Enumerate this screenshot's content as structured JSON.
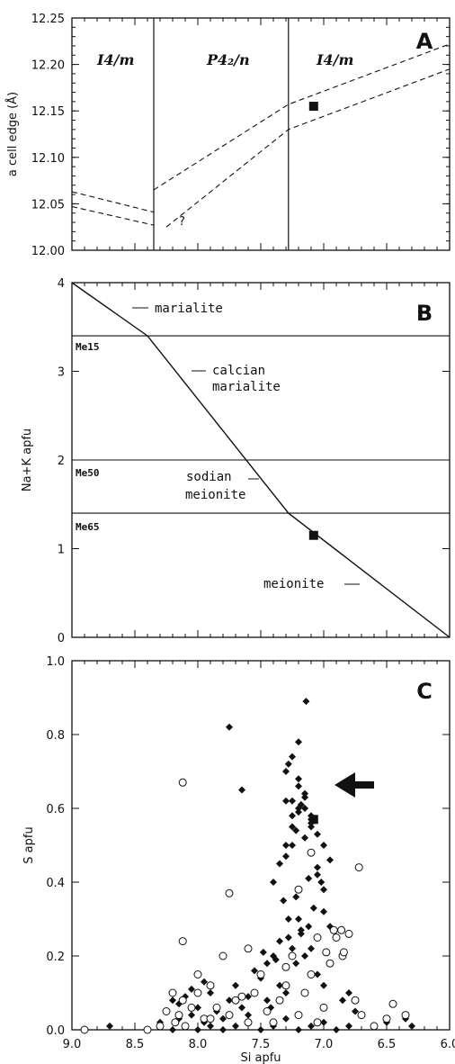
{
  "chart_data": [
    {
      "panel": "A",
      "type": "line",
      "ylabel": "a cell edge (Å)",
      "xlim": [
        9.0,
        6.0
      ],
      "ylim": [
        12.0,
        12.25
      ],
      "yticks": [
        "12.00",
        "12.05",
        "12.10",
        "12.15",
        "12.20",
        "12.25"
      ],
      "grid": false,
      "vertical_lines_x": [
        8.35,
        7.28
      ],
      "region_labels": [
        "I4/m",
        "P4₂/n",
        "I4/m"
      ],
      "question_mark": "?",
      "series": [
        {
          "style": "dashed",
          "x": [
            9.0,
            8.35
          ],
          "y": [
            12.063,
            12.041
          ]
        },
        {
          "style": "dashed",
          "x": [
            9.0,
            8.35
          ],
          "y": [
            12.047,
            12.027
          ]
        },
        {
          "style": "dashed",
          "x": [
            8.35,
            7.28,
            6.0
          ],
          "y": [
            12.065,
            12.157,
            12.222
          ]
        },
        {
          "style": "dashed",
          "x": [
            8.25,
            7.28,
            6.0
          ],
          "y": [
            12.025,
            12.13,
            12.195
          ]
        }
      ],
      "highlight_point": {
        "x": 7.08,
        "y": 12.155
      }
    },
    {
      "panel": "B",
      "type": "line",
      "ylabel": "Na+K apfu",
      "xlim": [
        9.0,
        6.0
      ],
      "ylim": [
        0,
        4
      ],
      "yticks": [
        "0",
        "1",
        "2",
        "3",
        "4"
      ],
      "horizontal_lines_y": [
        3.4,
        2.0,
        1.4
      ],
      "composition_labels": [
        "Me15",
        "Me50",
        "Me65"
      ],
      "field_labels": [
        "marialite",
        "calcian",
        "marialite",
        "sodian",
        "meionite",
        "meionite"
      ],
      "series": [
        {
          "style": "solid",
          "x": [
            9.0,
            8.4,
            7.28,
            6.0
          ],
          "y": [
            4.0,
            3.4,
            1.4,
            0.0
          ]
        }
      ],
      "highlight_point": {
        "x": 7.08,
        "y": 1.15
      }
    },
    {
      "panel": "C",
      "type": "scatter",
      "xlabel": "Si apfu",
      "ylabel": "S apfu",
      "xlim": [
        9.0,
        6.0
      ],
      "ylim": [
        0.0,
        1.0
      ],
      "xticks": [
        "9.0",
        "8.5",
        "8.0",
        "7.5",
        "7.0",
        "6.5",
        "6.0"
      ],
      "yticks": [
        "0.0",
        "0.2",
        "0.4",
        "0.6",
        "0.8",
        "1.0"
      ],
      "series": [
        {
          "marker": "filled-diamond",
          "x": [
            8.7,
            8.3,
            8.25,
            8.2,
            8.15,
            8.1,
            8.05,
            8.0,
            7.95,
            7.9,
            7.85,
            7.8,
            7.75,
            7.7,
            7.65,
            7.6,
            7.55,
            7.5,
            7.45,
            7.4,
            7.35,
            7.3,
            7.28,
            7.25,
            7.22,
            7.2,
            7.18,
            7.15,
            7.12,
            7.1,
            7.05,
            7.0,
            6.95,
            6.9,
            6.85,
            6.8,
            6.75,
            6.7,
            6.6,
            6.5,
            6.35,
            6.3,
            8.2,
            8.1,
            8.0,
            7.9,
            7.8,
            7.7,
            7.6,
            7.5,
            7.4,
            7.3,
            7.2,
            7.1,
            7.0,
            6.9,
            6.8,
            7.4,
            7.35,
            7.3,
            7.25,
            7.2,
            7.15,
            7.1,
            7.05,
            7.0,
            7.3,
            7.25,
            7.2,
            7.15,
            7.1,
            7.05,
            7.0,
            6.95,
            7.3,
            7.28,
            7.25,
            7.2,
            7.15,
            7.1,
            7.05,
            7.02,
            7.32,
            7.28,
            7.25,
            7.22,
            7.2,
            7.18,
            7.15,
            7.1,
            7.75,
            7.65,
            7.14,
            7.2,
            7.3,
            7.1,
            7.25,
            7.5,
            7.45,
            7.0,
            6.95,
            7.35,
            7.22,
            7.12,
            7.08,
            7.18,
            7.38,
            7.42,
            8.15,
            8.05,
            7.95,
            7.6,
            7.55,
            7.48
          ],
          "y": [
            0.01,
            0.02,
            0.05,
            0.08,
            0.03,
            0.09,
            0.04,
            0.06,
            0.02,
            0.1,
            0.05,
            0.03,
            0.08,
            0.12,
            0.06,
            0.04,
            0.1,
            0.15,
            0.18,
            0.2,
            0.12,
            0.1,
            0.25,
            0.22,
            0.18,
            0.3,
            0.26,
            0.2,
            0.28,
            0.22,
            0.15,
            0.12,
            0.18,
            0.25,
            0.08,
            0.1,
            0.05,
            0.04,
            0.01,
            0.02,
            0.03,
            0.01,
            0.0,
            0.01,
            0.0,
            0.01,
            0.0,
            0.01,
            0.02,
            0.0,
            0.01,
            0.03,
            0.0,
            0.01,
            0.02,
            0.0,
            0.01,
            0.4,
            0.45,
            0.5,
            0.55,
            0.6,
            0.52,
            0.48,
            0.42,
            0.38,
            0.62,
            0.58,
            0.66,
            0.64,
            0.56,
            0.53,
            0.5,
            0.46,
            0.7,
            0.72,
            0.74,
            0.68,
            0.6,
            0.57,
            0.44,
            0.4,
            0.35,
            0.3,
            0.5,
            0.54,
            0.59,
            0.61,
            0.63,
            0.58,
            0.82,
            0.65,
            0.89,
            0.78,
            0.47,
            0.55,
            0.62,
            0.14,
            0.08,
            0.32,
            0.28,
            0.24,
            0.36,
            0.41,
            0.33,
            0.27,
            0.19,
            0.06,
            0.07,
            0.11,
            0.13,
            0.09,
            0.16,
            0.21
          ]
        },
        {
          "marker": "open-circle",
          "x": [
            8.9,
            8.4,
            8.3,
            8.25,
            8.2,
            8.18,
            8.15,
            8.12,
            8.1,
            8.05,
            8.0,
            7.95,
            7.9,
            7.85,
            7.8,
            7.75,
            7.7,
            7.6,
            7.55,
            7.5,
            7.45,
            7.4,
            7.35,
            7.3,
            7.25,
            7.2,
            7.15,
            7.1,
            7.05,
            7.0,
            6.95,
            6.9,
            6.85,
            6.8,
            6.75,
            6.7,
            6.6,
            6.5,
            6.45,
            6.35,
            8.12,
            8.12,
            7.75,
            7.2,
            7.1,
            6.72,
            6.92,
            7.05,
            7.3,
            8.0,
            7.9,
            7.65,
            7.6,
            6.98,
            6.86,
            6.84
          ],
          "y": [
            0.0,
            0.0,
            0.01,
            0.05,
            0.1,
            0.02,
            0.04,
            0.08,
            0.01,
            0.06,
            0.1,
            0.03,
            0.12,
            0.06,
            0.2,
            0.04,
            0.08,
            0.02,
            0.1,
            0.15,
            0.05,
            0.02,
            0.08,
            0.12,
            0.2,
            0.04,
            0.1,
            0.15,
            0.02,
            0.06,
            0.18,
            0.25,
            0.2,
            0.26,
            0.08,
            0.04,
            0.01,
            0.03,
            0.07,
            0.04,
            0.67,
            0.24,
            0.37,
            0.38,
            0.48,
            0.44,
            0.27,
            0.25,
            0.17,
            0.15,
            0.03,
            0.09,
            0.22,
            0.21,
            0.27,
            0.21
          ]
        }
      ],
      "highlight_point": {
        "x": 7.08,
        "y": 0.57
      }
    }
  ],
  "panel_letters": [
    "A",
    "B",
    "C"
  ]
}
